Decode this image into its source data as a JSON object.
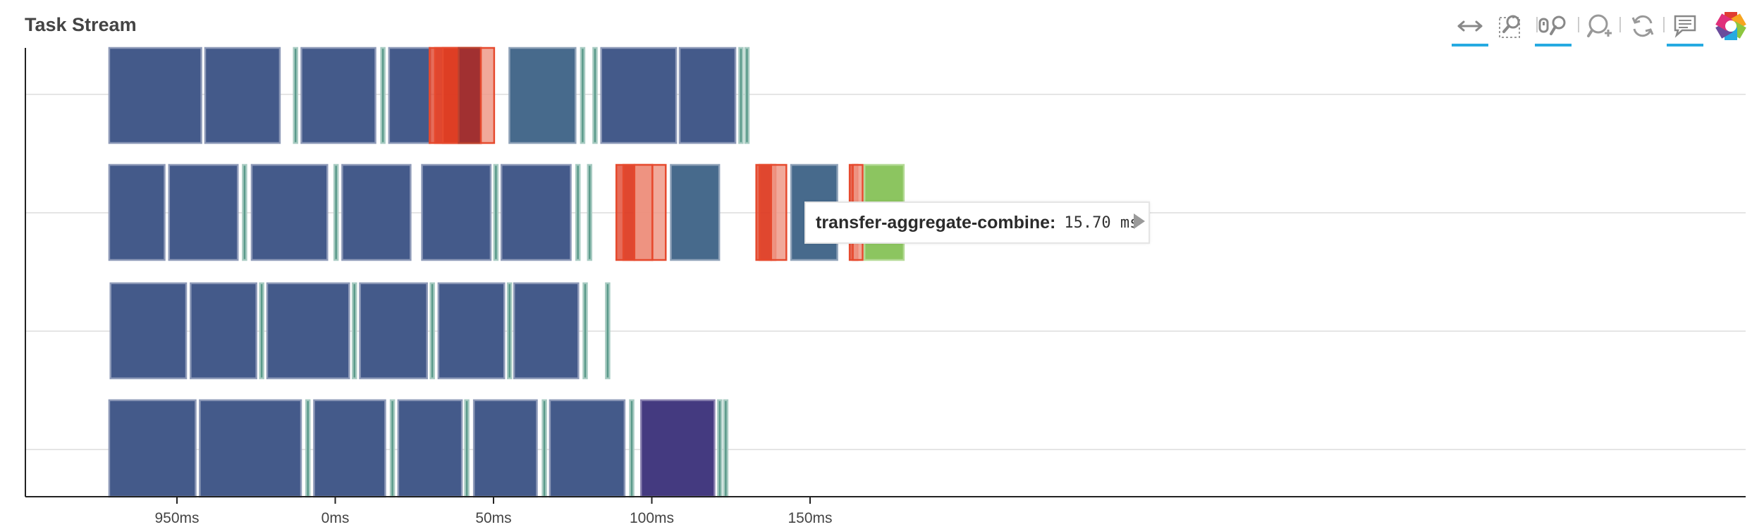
{
  "title": "Task Stream",
  "toolbar": {
    "tools": [
      {
        "name": "xpan-tool",
        "icon": "horizontal-arrows-icon",
        "active": true
      },
      {
        "name": "box-zoom-tool",
        "icon": "box-zoom-icon",
        "active": false
      },
      {
        "name": "wheel-zoom-tool",
        "icon": "wheel-zoom-icon",
        "active": true
      },
      {
        "name": "zoom-in-tool",
        "icon": "zoom-in-icon",
        "active": false
      },
      {
        "name": "reset-tool",
        "icon": "reset-icon",
        "active": false
      },
      {
        "name": "hover-tool",
        "icon": "hover-icon",
        "active": true
      },
      {
        "name": "bokeh-logo",
        "icon": "bokeh-logo-icon",
        "active": false
      }
    ]
  },
  "tooltip": {
    "label": "transfer-aggregate-combine:",
    "value": "15.70 ms"
  },
  "colors": {
    "compute": "#445a8a",
    "compute_teal": "#476a8c",
    "compute_purple": "#443a80",
    "transfer_thin": "#5a9a8a",
    "transfer_red": "#dd3b22",
    "transfer_red_light": "#ef9a88",
    "transfer_dark_red": "#9a2f33",
    "finish_green": "#8cc560",
    "grid": "#e5e5e5",
    "axis": "#222222"
  },
  "chart_data": {
    "type": "gantt",
    "title": "Task Stream",
    "xlabel": "",
    "ylabel": "",
    "xlim": [
      -100,
      195
    ],
    "x_ticks": [
      {
        "value": -50,
        "label": "950ms"
      },
      {
        "value": 0,
        "label": "0ms"
      },
      {
        "value": 50,
        "label": "50ms"
      },
      {
        "value": 100,
        "label": "100ms"
      },
      {
        "value": 150,
        "label": "150ms"
      }
    ],
    "grid": true,
    "lanes": [
      {
        "lane": 0,
        "tasks": [
          {
            "start": -71.4,
            "end": -42.3,
            "kind": "compute"
          },
          {
            "start": -41.1,
            "end": -17.5,
            "kind": "compute"
          },
          {
            "start": -13.1,
            "end": -12.4,
            "kind": "transfer"
          },
          {
            "start": -10.7,
            "end": 12.7,
            "kind": "compute"
          },
          {
            "start": 14.5,
            "end": 15.3,
            "kind": "transfer"
          },
          {
            "start": 17.0,
            "end": 30.0,
            "kind": "compute"
          },
          {
            "start": 29.8,
            "end": 46.0,
            "kind": "transfer-red"
          },
          {
            "start": 31.5,
            "end": 46.0,
            "kind": "transfer-red"
          },
          {
            "start": 34.0,
            "end": 46.0,
            "kind": "transfer-red"
          },
          {
            "start": 39.0,
            "end": 46.0,
            "kind": "transfer-dark"
          },
          {
            "start": 46.0,
            "end": 50.2,
            "kind": "transfer-red-light"
          },
          {
            "start": 55.0,
            "end": 75.9,
            "kind": "compute-teal"
          },
          {
            "start": 77.6,
            "end": 78.3,
            "kind": "transfer"
          },
          {
            "start": 81.5,
            "end": 82.2,
            "kind": "transfer"
          },
          {
            "start": 84.0,
            "end": 107.7,
            "kind": "compute"
          },
          {
            "start": 108.8,
            "end": 126.4,
            "kind": "compute"
          },
          {
            "start": 127.6,
            "end": 128.3,
            "kind": "transfer"
          },
          {
            "start": 129.5,
            "end": 130.2,
            "kind": "transfer"
          }
        ]
      },
      {
        "lane": 1,
        "tasks": [
          {
            "start": -71.4,
            "end": -53.9,
            "kind": "compute"
          },
          {
            "start": -52.5,
            "end": -30.8,
            "kind": "compute"
          },
          {
            "start": -29.2,
            "end": -28.5,
            "kind": "transfer"
          },
          {
            "start": -26.4,
            "end": -2.5,
            "kind": "compute"
          },
          {
            "start": -0.3,
            "end": 0.4,
            "kind": "transfer"
          },
          {
            "start": 2.2,
            "end": 23.8,
            "kind": "compute"
          },
          {
            "start": 27.4,
            "end": 49.1,
            "kind": "compute"
          },
          {
            "start": 50.2,
            "end": 50.9,
            "kind": "transfer"
          },
          {
            "start": 52.5,
            "end": 74.4,
            "kind": "compute"
          },
          {
            "start": 76.1,
            "end": 76.8,
            "kind": "transfer"
          },
          {
            "start": 79.8,
            "end": 80.5,
            "kind": "transfer"
          },
          {
            "start": 88.8,
            "end": 94.5,
            "kind": "transfer-red"
          },
          {
            "start": 91.0,
            "end": 100.0,
            "kind": "transfer-red"
          },
          {
            "start": 94.5,
            "end": 100.2,
            "kind": "transfer-red-light"
          },
          {
            "start": 100.2,
            "end": 104.4,
            "kind": "transfer-red-light"
          },
          {
            "start": 106.0,
            "end": 121.3,
            "kind": "compute-teal"
          },
          {
            "start": 133.0,
            "end": 137.7,
            "kind": "transfer-red"
          },
          {
            "start": 134.0,
            "end": 139.1,
            "kind": "transfer-red"
          },
          {
            "start": 137.7,
            "end": 142.5,
            "kind": "transfer-red-light"
          },
          {
            "start": 144.0,
            "end": 158.6,
            "kind": "compute-teal"
          },
          {
            "start": 162.5,
            "end": 165.0,
            "kind": "transfer-red"
          },
          {
            "start": 163.5,
            "end": 166.6,
            "kind": "transfer-red-light"
          },
          {
            "start": 167.2,
            "end": 179.6,
            "kind": "finish-green"
          }
        ]
      },
      {
        "lane": 2,
        "tasks": [
          {
            "start": -71.0,
            "end": -47.1,
            "kind": "compute"
          },
          {
            "start": -45.7,
            "end": -24.9,
            "kind": "compute"
          },
          {
            "start": -23.8,
            "end": -23.1,
            "kind": "transfer"
          },
          {
            "start": -21.5,
            "end": 4.4,
            "kind": "compute"
          },
          {
            "start": 5.5,
            "end": 6.2,
            "kind": "transfer"
          },
          {
            "start": 7.8,
            "end": 29.0,
            "kind": "compute"
          },
          {
            "start": 30.1,
            "end": 30.8,
            "kind": "transfer"
          },
          {
            "start": 32.6,
            "end": 53.4,
            "kind": "compute"
          },
          {
            "start": 54.5,
            "end": 55.2,
            "kind": "transfer"
          },
          {
            "start": 56.5,
            "end": 76.8,
            "kind": "compute"
          },
          {
            "start": 78.4,
            "end": 79.1,
            "kind": "transfer"
          },
          {
            "start": 85.5,
            "end": 86.2,
            "kind": "transfer"
          }
        ]
      },
      {
        "lane": 3,
        "tasks": [
          {
            "start": -71.4,
            "end": -44.1,
            "kind": "compute"
          },
          {
            "start": -42.8,
            "end": -10.8,
            "kind": "compute"
          },
          {
            "start": -9.2,
            "end": -8.5,
            "kind": "transfer"
          },
          {
            "start": -6.7,
            "end": 15.8,
            "kind": "compute"
          },
          {
            "start": 17.5,
            "end": 18.2,
            "kind": "transfer"
          },
          {
            "start": 19.9,
            "end": 40.0,
            "kind": "compute"
          },
          {
            "start": 41.0,
            "end": 41.7,
            "kind": "transfer"
          },
          {
            "start": 43.8,
            "end": 63.7,
            "kind": "compute"
          },
          {
            "start": 65.5,
            "end": 66.2,
            "kind": "transfer"
          },
          {
            "start": 67.8,
            "end": 91.4,
            "kind": "compute"
          },
          {
            "start": 93.1,
            "end": 93.8,
            "kind": "transfer"
          },
          {
            "start": 96.6,
            "end": 119.8,
            "kind": "compute-purple"
          },
          {
            "start": 120.9,
            "end": 121.6,
            "kind": "transfer"
          },
          {
            "start": 122.8,
            "end": 123.5,
            "kind": "transfer"
          }
        ]
      }
    ]
  }
}
